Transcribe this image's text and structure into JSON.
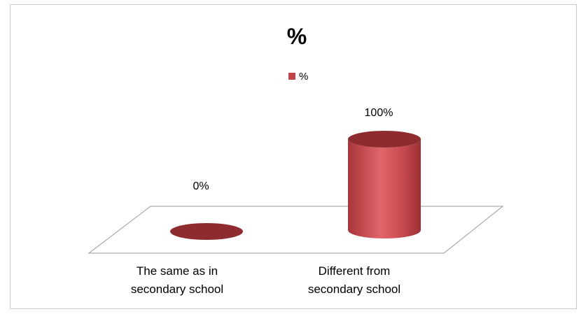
{
  "chart_data": {
    "type": "bar",
    "title": "%",
    "categories": [
      "The same as in secondary school",
      "Different from secondary school"
    ],
    "category_lines": [
      [
        "The same as in",
        "secondary school"
      ],
      [
        "Different from",
        "secondary school"
      ]
    ],
    "series": [
      {
        "name": "%",
        "values": [
          0,
          100
        ]
      }
    ],
    "data_labels": [
      "0%",
      "100%"
    ],
    "ylim": [
      0,
      100
    ],
    "grid": false,
    "legend_position": "top",
    "bar_shape": "cylinder",
    "colors": {
      "bar": "#c0454a",
      "bar_top": "#8e2b2f",
      "bar_highlight": "#e06a6e",
      "bar_shadow": "#9c3034",
      "floor_stroke": "#9a9a9a"
    }
  }
}
